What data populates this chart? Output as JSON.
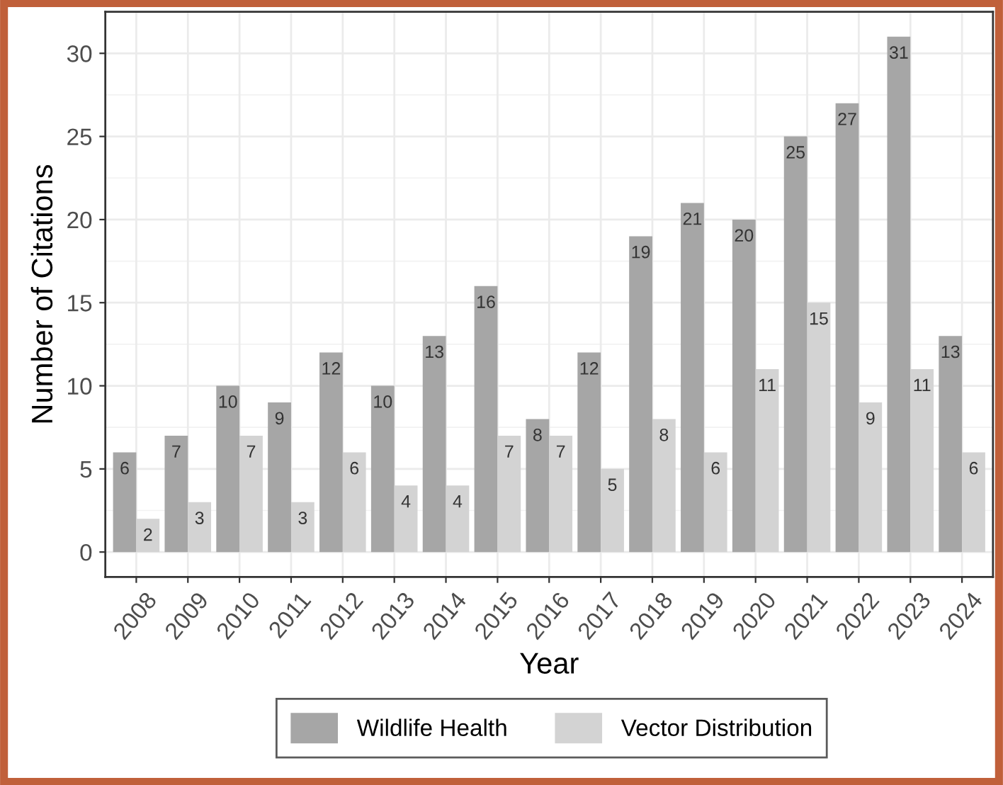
{
  "chart_data": {
    "type": "bar",
    "xlabel": "Year",
    "ylabel": "Number of Citations",
    "categories": [
      "2008",
      "2009",
      "2010",
      "2011",
      "2012",
      "2013",
      "2014",
      "2015",
      "2016",
      "2017",
      "2018",
      "2019",
      "2020",
      "2021",
      "2022",
      "2023",
      "2024"
    ],
    "series": [
      {
        "name": "Wildlife Health",
        "color": "#a6a6a6",
        "values": [
          6,
          7,
          10,
          9,
          12,
          10,
          13,
          16,
          8,
          12,
          19,
          21,
          20,
          25,
          27,
          31,
          13
        ]
      },
      {
        "name": "Vector Distribution",
        "color": "#d3d3d3",
        "values": [
          2,
          3,
          7,
          3,
          6,
          4,
          4,
          7,
          7,
          5,
          8,
          6,
          11,
          15,
          9,
          11,
          6
        ]
      }
    ],
    "ylim": [
      -1.5,
      32.5
    ],
    "yticks": [
      0,
      5,
      10,
      15,
      20,
      25,
      30
    ],
    "grid": true,
    "legend": "bottom",
    "data_labels": true
  }
}
